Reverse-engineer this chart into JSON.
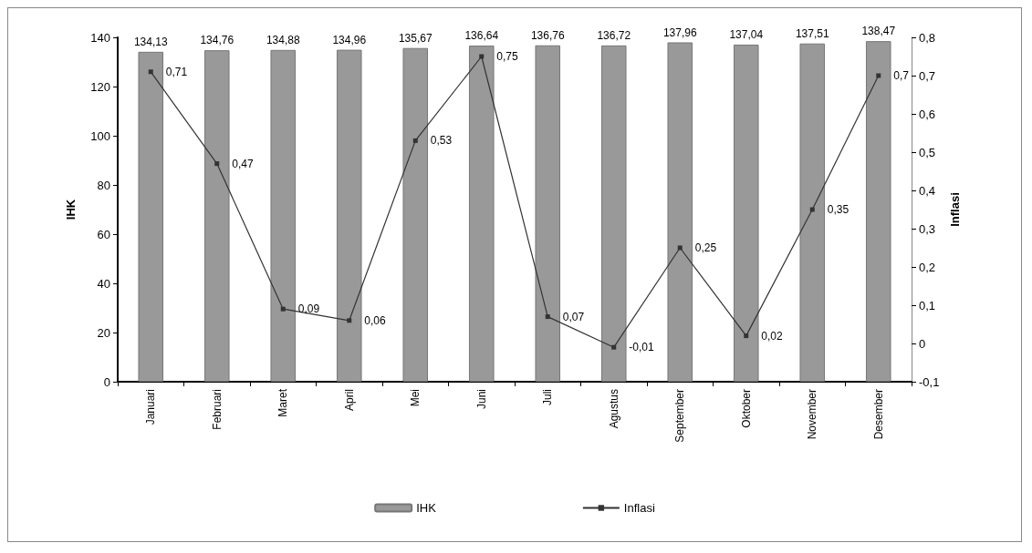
{
  "chart_data": {
    "type": "bar",
    "ylabel": "IHK",
    "y2label": "Inflasi",
    "categories": [
      "Januari",
      "Februari",
      "Maret",
      "April",
      "Mei",
      "Juni",
      "Juli",
      "Agustus",
      "September",
      "Oktober",
      "November",
      "Desember"
    ],
    "series": [
      {
        "name": "IHK",
        "color": "#999999",
        "values": [
          134.13,
          134.76,
          134.88,
          134.96,
          135.67,
          136.64,
          136.76,
          136.72,
          137.96,
          137.04,
          137.51,
          138.47
        ],
        "value_labels": [
          "134,13",
          "134,76",
          "134,88",
          "134,96",
          "135,67",
          "136,64",
          "136,76",
          "136,72",
          "137,96",
          "137,04",
          "137,51",
          "138,47"
        ]
      },
      {
        "name": "Inflasi",
        "type": "line",
        "axis": "y2",
        "color": "#333333",
        "values": [
          0.71,
          0.47,
          0.09,
          0.06,
          0.53,
          0.75,
          0.07,
          -0.01,
          0.25,
          0.02,
          0.35,
          0.7
        ],
        "value_labels": [
          "0,71",
          "0,47",
          "0,09",
          "0,06",
          "0,53",
          "0,75",
          "0,07",
          "-0,01",
          "0,25",
          "0,02",
          "0,35",
          "0,7"
        ]
      }
    ],
    "ylim": [
      0,
      140
    ],
    "yticks": [
      0,
      20,
      40,
      60,
      80,
      100,
      120,
      140
    ],
    "y2lim": [
      -0.1,
      0.8
    ],
    "y2ticks": [
      {
        "value": -0.1,
        "label": "-0,1"
      },
      {
        "value": 0,
        "label": "0"
      },
      {
        "value": 0.1,
        "label": "0,1"
      },
      {
        "value": 0.2,
        "label": "0,2"
      },
      {
        "value": 0.3,
        "label": "0,3"
      },
      {
        "value": 0.4,
        "label": "0,4"
      },
      {
        "value": 0.5,
        "label": "0,5"
      },
      {
        "value": 0.6,
        "label": "0,6"
      },
      {
        "value": 0.7,
        "label": "0,7"
      },
      {
        "value": 0.8,
        "label": "0,8"
      }
    ],
    "grid": false,
    "legend": "bottom",
    "marker": "square",
    "line_style": "solid"
  }
}
